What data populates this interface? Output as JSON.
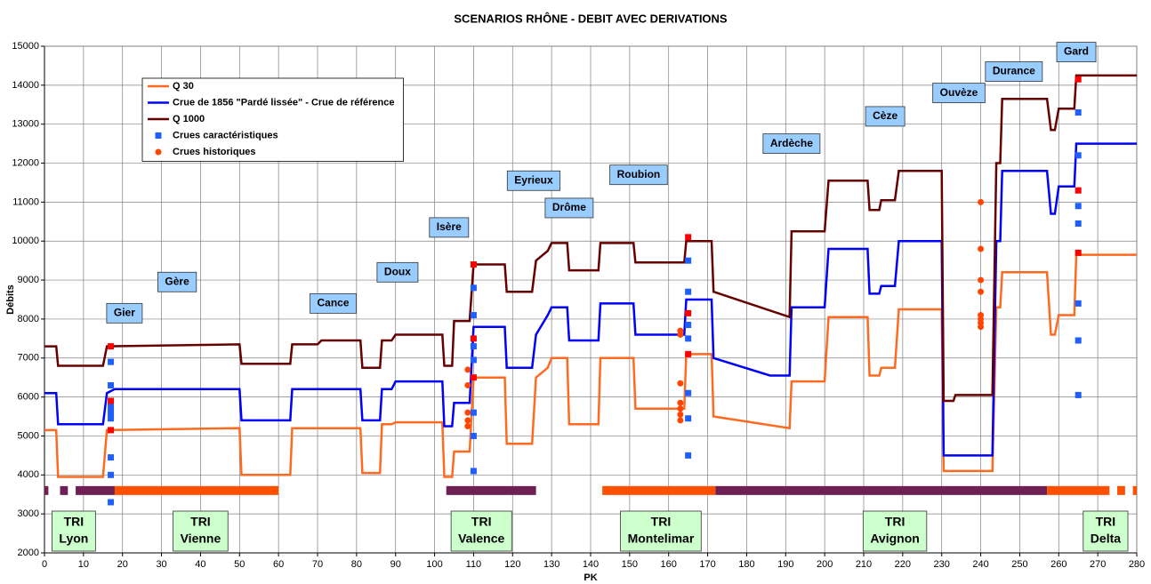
{
  "chart_data": {
    "type": "line",
    "title": "SCENARIOS RHÔNE - DEBIT AVEC DERIVATIONS",
    "x_label": "PK",
    "y_label": "Débits",
    "xlim": [
      0,
      280
    ],
    "xticks": [
      0,
      10,
      20,
      30,
      40,
      50,
      60,
      70,
      80,
      90,
      100,
      110,
      120,
      130,
      140,
      150,
      160,
      170,
      180,
      190,
      200,
      210,
      220,
      230,
      240,
      250,
      260,
      270,
      280
    ],
    "ylim": [
      2000,
      15000
    ],
    "yticks": [
      2000,
      3000,
      4000,
      5000,
      6000,
      7000,
      8000,
      9000,
      10000,
      11000,
      12000,
      13000,
      14000,
      15000
    ],
    "grid": true,
    "legend": "upper left",
    "series": [
      {
        "name": "Q 30",
        "type": "line",
        "color": "#ff6a21",
        "x": [
          0,
          3,
          3.5,
          15,
          16,
          50,
          50.5,
          63,
          63.5,
          81,
          81.5,
          86,
          86.5,
          89,
          90,
          102,
          102.5,
          104.5,
          105,
          109,
          110,
          118,
          118.5,
          125,
          126,
          129,
          130,
          134,
          134.5,
          142,
          142.5,
          151,
          151.5,
          164,
          164.5,
          171,
          171.5,
          191,
          191.5,
          200,
          201,
          211,
          211.5,
          214,
          214.5,
          218,
          219,
          230,
          230.5,
          243,
          244,
          245,
          245.5,
          257,
          258,
          259,
          260,
          264,
          264.5,
          280
        ],
        "values": [
          5150,
          5150,
          3950,
          3950,
          5150,
          5200,
          4000,
          4000,
          5200,
          5200,
          4050,
          4050,
          5300,
          5300,
          5350,
          5350,
          3950,
          3950,
          4600,
          4600,
          6500,
          6500,
          4800,
          4800,
          6500,
          6750,
          7000,
          7000,
          5300,
          5300,
          7000,
          7000,
          5700,
          5700,
          7100,
          7100,
          5500,
          5200,
          6400,
          6400,
          8050,
          8050,
          6550,
          6550,
          6750,
          6750,
          8250,
          8250,
          4100,
          4100,
          8300,
          8300,
          9200,
          9200,
          7600,
          7600,
          8100,
          8100,
          9650,
          9650
        ]
      },
      {
        "name": "Crue de 1856 \"Pardé lissée\" - Crue de référence",
        "type": "line",
        "color": "#0000ff",
        "x": [
          0,
          3,
          3.5,
          15,
          16,
          18,
          50,
          50.5,
          63,
          63.5,
          81,
          81.5,
          86,
          86.5,
          89,
          90,
          102,
          102.5,
          104.5,
          105,
          109,
          110,
          118,
          118.5,
          125,
          126,
          129,
          130,
          134,
          134.5,
          142,
          142.5,
          151,
          151.5,
          164,
          164.5,
          171,
          171.5,
          186,
          191,
          191.5,
          200,
          201,
          211,
          211.5,
          214,
          214.5,
          218,
          219,
          230,
          230.5,
          243,
          244,
          245,
          245.5,
          257,
          258,
          259,
          260,
          264,
          264.5,
          280
        ],
        "values": [
          6100,
          6100,
          5300,
          5300,
          6100,
          6200,
          6200,
          5400,
          5400,
          6200,
          6200,
          5400,
          5400,
          6200,
          6200,
          6400,
          6400,
          5250,
          5250,
          5850,
          5850,
          7800,
          7800,
          6750,
          6750,
          7600,
          8100,
          8300,
          8300,
          7450,
          7450,
          8400,
          8400,
          7600,
          7600,
          8500,
          8500,
          7000,
          6550,
          6550,
          8300,
          8300,
          9800,
          9800,
          8650,
          8650,
          8850,
          8850,
          10000,
          10000,
          4500,
          4500,
          10000,
          10000,
          11800,
          11800,
          10700,
          10700,
          11400,
          11400,
          12500,
          12500
        ]
      },
      {
        "name": "Q 1000",
        "type": "line",
        "color": "#660000",
        "x": [
          0,
          3,
          3.5,
          15,
          16,
          50,
          50.5,
          63,
          63.5,
          70,
          71,
          81,
          81.5,
          86,
          86.5,
          89,
          90,
          102,
          102.5,
          104.5,
          105,
          109,
          110,
          118,
          118.5,
          125,
          126,
          129,
          130,
          134,
          134.5,
          142,
          142.5,
          151,
          151.5,
          164,
          164.5,
          171,
          171.5,
          191,
          191.5,
          200,
          201,
          211,
          211.5,
          214,
          214.5,
          218,
          219,
          230,
          230.5,
          233,
          233.5,
          243,
          244,
          245,
          245.5,
          257,
          258,
          259,
          260,
          264,
          264.5,
          280
        ],
        "values": [
          7300,
          7300,
          6800,
          6800,
          7300,
          7350,
          6850,
          6850,
          7350,
          7350,
          7450,
          7450,
          6750,
          6750,
          7450,
          7450,
          7600,
          7600,
          6800,
          6800,
          7950,
          7950,
          9400,
          9400,
          8700,
          8700,
          9500,
          9750,
          9950,
          9950,
          9250,
          9250,
          9950,
          9950,
          9450,
          9450,
          10000,
          10000,
          8700,
          8050,
          10250,
          10250,
          11550,
          11550,
          10800,
          10800,
          11050,
          11050,
          11800,
          11800,
          5900,
          5900,
          6050,
          6050,
          12000,
          12000,
          13650,
          13650,
          12850,
          12850,
          13400,
          13400,
          14250,
          14250
        ]
      },
      {
        "name": "Crues caractéristiques",
        "type": "square",
        "color": "#1f5fff",
        "x": [
          17,
          17,
          17,
          17,
          17,
          17,
          17,
          17,
          110,
          110,
          110,
          110,
          110,
          110,
          110,
          165,
          165,
          165,
          165,
          165,
          165,
          165,
          265,
          265,
          265,
          265,
          265,
          265,
          265
        ],
        "values": [
          6900,
          6300,
          5750,
          5600,
          5450,
          4450,
          4000,
          3300,
          8800,
          8100,
          7300,
          6950,
          5600,
          5000,
          4100,
          9500,
          8700,
          7850,
          7500,
          6100,
          5450,
          4500,
          13300,
          12200,
          10900,
          10450,
          8400,
          7450,
          6050
        ]
      },
      {
        "name": "Crues historiques",
        "type": "circle",
        "color": "#ff4500",
        "x": [
          108.5,
          108.5,
          108.5,
          108.5,
          108.5,
          163,
          163,
          163,
          163,
          163,
          163,
          163,
          240,
          240,
          240,
          240,
          240,
          240,
          240,
          240
        ],
        "values": [
          6700,
          6300,
          5600,
          5400,
          5250,
          7700,
          7600,
          6350,
          5850,
          5700,
          5550,
          5400,
          11000,
          9800,
          9000,
          8700,
          8100,
          8000,
          7900,
          7800
        ]
      },
      {
        "type": "square",
        "color": "#ff0000",
        "x": [
          17,
          17,
          17,
          110,
          110,
          110,
          165,
          165,
          165,
          265,
          265,
          265
        ],
        "values": [
          7300,
          5900,
          5150,
          9400,
          7500,
          6500,
          10100,
          8150,
          7100,
          14150,
          11300,
          9700
        ]
      }
    ],
    "band_level": 3600,
    "bands": [
      {
        "start": 0,
        "end": 1,
        "color": "#6e1f53"
      },
      {
        "start": 4,
        "end": 6,
        "color": "#6e1f53"
      },
      {
        "start": 8,
        "end": 18,
        "color": "#6e1f53"
      },
      {
        "start": 18,
        "end": 60,
        "color": "#ff4f00"
      },
      {
        "start": 103,
        "end": 126,
        "color": "#6e1f53"
      },
      {
        "start": 143,
        "end": 172,
        "color": "#ff4f00"
      },
      {
        "start": 172,
        "end": 257,
        "color": "#6e1f53"
      },
      {
        "start": 257,
        "end": 273,
        "color": "#ff4f00"
      },
      {
        "start": 275,
        "end": 277,
        "color": "#ff4f00"
      },
      {
        "start": 279,
        "end": 280,
        "color": "#ff4f00"
      }
    ],
    "annotations": [
      {
        "text": "Gier",
        "x": 20.5,
        "y": 8150
      },
      {
        "text": "Gère",
        "x": 34,
        "y": 8950
      },
      {
        "text": "Cance",
        "x": 74,
        "y": 8400
      },
      {
        "text": "Doux",
        "x": 90.5,
        "y": 9200
      },
      {
        "text": "Isère",
        "x": 103.7,
        "y": 10350
      },
      {
        "text": "Eyrieux",
        "x": 125.4,
        "y": 11550
      },
      {
        "text": "Drôme",
        "x": 134.5,
        "y": 10850
      },
      {
        "text": "Roubion",
        "x": 152.3,
        "y": 11700
      },
      {
        "text": "Ardèche",
        "x": 191.5,
        "y": 12500
      },
      {
        "text": "Cèze",
        "x": 215.5,
        "y": 13200
      },
      {
        "text": "Ouvèze",
        "x": 234.4,
        "y": 13800
      },
      {
        "text": "Durance",
        "x": 248.5,
        "y": 14350
      },
      {
        "text": "Gard",
        "x": 264.5,
        "y": 14850
      }
    ],
    "zones": [
      {
        "lines": [
          "TRI",
          "Lyon"
        ],
        "x": 7.5
      },
      {
        "lines": [
          "TRI",
          "Vienne"
        ],
        "x": 40
      },
      {
        "lines": [
          "TRI",
          "Valence"
        ],
        "x": 112
      },
      {
        "lines": [
          "TRI",
          "Montelimar"
        ],
        "x": 158
      },
      {
        "lines": [
          "TRI",
          "Avignon"
        ],
        "x": 218
      },
      {
        "lines": [
          "TRI",
          "Delta"
        ],
        "x": 272
      }
    ]
  }
}
